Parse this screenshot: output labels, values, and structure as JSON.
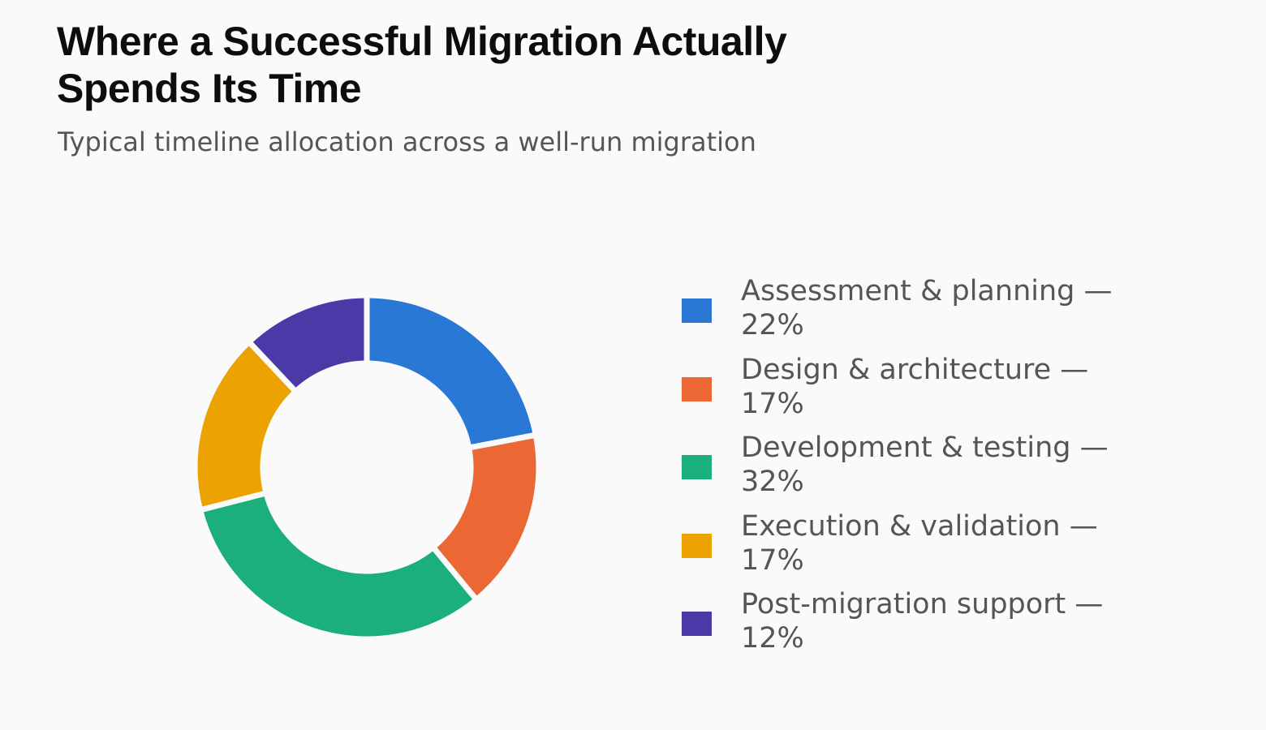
{
  "title": "Where a Successful Migration Actually Spends Its Time",
  "subtitle": "Typical timeline allocation across a well-run migration",
  "chart_data": {
    "type": "pie",
    "variant": "donut",
    "title": "Where a Successful Migration Actually Spends Its Time",
    "subtitle": "Typical timeline allocation across a well-run migration",
    "categories": [
      "Assessment & planning",
      "Design & architecture",
      "Development & testing",
      "Execution & validation",
      "Post-migration support"
    ],
    "values": [
      22,
      17,
      32,
      17,
      12
    ],
    "unit": "%",
    "colors": [
      "#2a78d6",
      "#eb6834",
      "#1baf7c",
      "#eca201",
      "#4a3aa8"
    ],
    "legend": [
      {
        "label": "Assessment & planning — 22%",
        "color": "#2a78d6"
      },
      {
        "label": "Design & architecture — 17%",
        "color": "#eb6834"
      },
      {
        "label": "Development & testing — 32%",
        "color": "#1baf7c"
      },
      {
        "label": "Execution & validation — 17%",
        "color": "#eca201"
      },
      {
        "label": "Post-migration support — 12%",
        "color": "#4a3aa8"
      }
    ],
    "legend_position": "right",
    "start_angle": "12 o'clock, clockwise",
    "grid": false
  }
}
